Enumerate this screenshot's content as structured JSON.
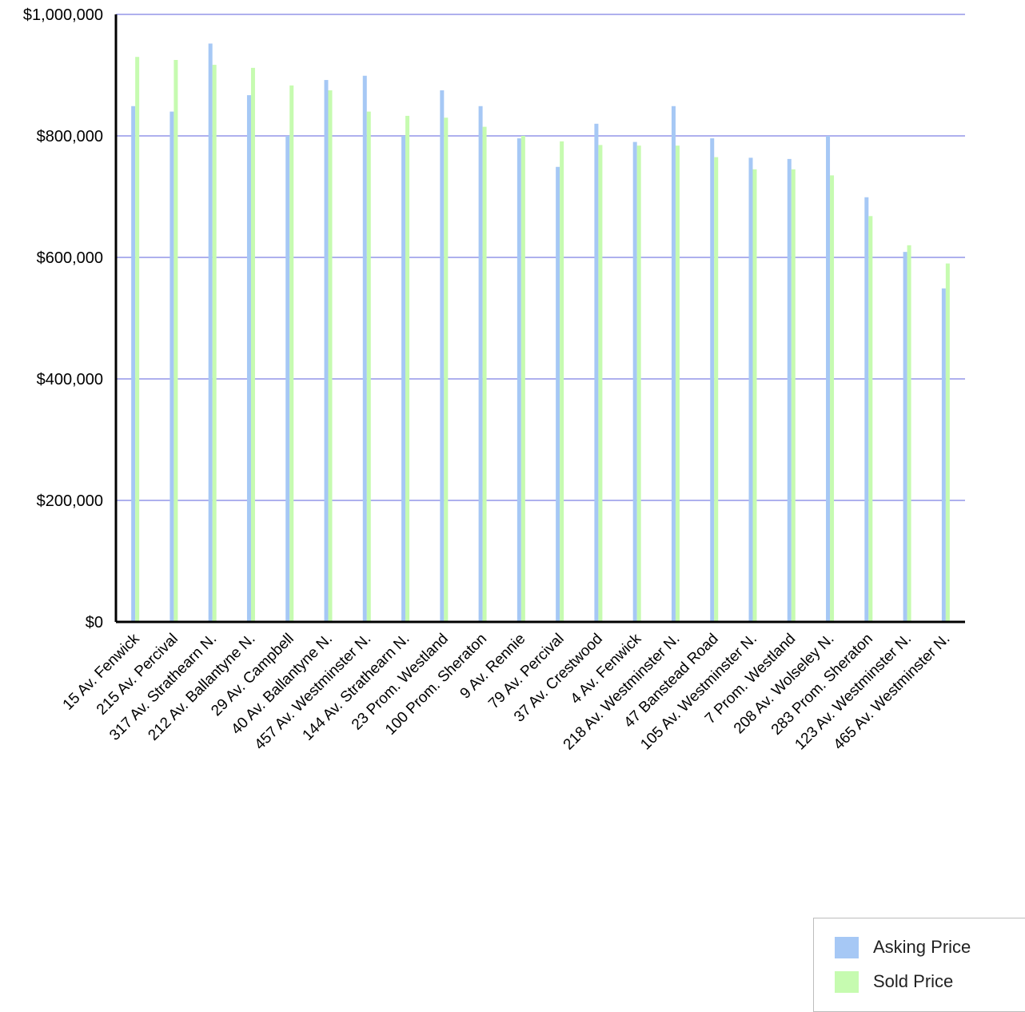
{
  "chart_data": {
    "type": "bar",
    "categories": [
      "15 Av. Fenwick",
      "215 Av. Percival",
      "317 Av. Strathearn N.",
      "212 Av. Ballantyne N.",
      "29 Av. Campbell",
      "40 Av. Ballantyne N.",
      "457 Av. Westminster N.",
      "144 Av. Strathearn N.",
      "23 Prom. Westland",
      "100 Prom. Sheraton",
      "9 Av. Rennie",
      "79 Av. Percival",
      "37 Av. Crestwood",
      "4 Av. Fenwick",
      "218 Av. Westminster N.",
      "47 Banstead Road",
      "105 Av. Westminster N.",
      "7 Prom. Westland",
      "208 Av. Wolseley N.",
      "283 Prom. Sheraton",
      "123 Av. Westminster N.",
      "465 Av. Westminster N."
    ],
    "series": [
      {
        "name": "Asking Price",
        "color": "#a6c8f5",
        "values": [
          849000,
          840000,
          952000,
          867000,
          800000,
          892000,
          899000,
          800000,
          875000,
          849000,
          796000,
          749000,
          820000,
          790000,
          849000,
          796000,
          764000,
          762000,
          800000,
          699000,
          609000,
          549000
        ]
      },
      {
        "name": "Sold Price",
        "color": "#c6fbb0",
        "values": [
          930000,
          925000,
          917000,
          912000,
          883000,
          875000,
          840000,
          833000,
          830000,
          815000,
          800000,
          791000,
          785000,
          784000,
          784000,
          765000,
          745000,
          745000,
          735000,
          668000,
          620000,
          590000
        ]
      }
    ],
    "ylim": [
      0,
      1000000
    ],
    "yticks": [
      "$0",
      "$200,000",
      "$400,000",
      "$600,000",
      "$800,000",
      "$1,000,000"
    ],
    "yticks_values": [
      0,
      200000,
      400000,
      600000,
      800000,
      1000000
    ],
    "grid": true,
    "gridColor": "#aeb0ee",
    "legend_position": "bottom-right",
    "title": "",
    "xlabel": "",
    "ylabel": ""
  }
}
